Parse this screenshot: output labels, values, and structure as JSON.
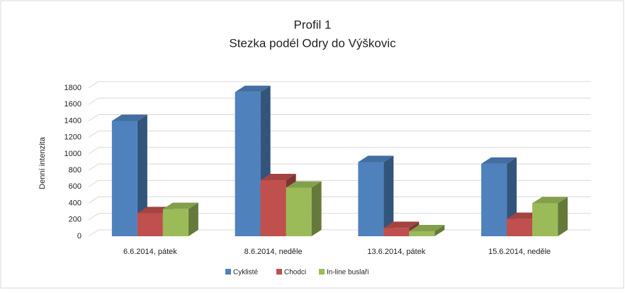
{
  "chart_data": {
    "type": "bar3d",
    "title": "Profil 1",
    "subtitle": "Stezka podél Odry do Výškovic",
    "y_label": "Denní intenzita",
    "categories": [
      "6.6.2014, pátek",
      "8.6.2014, neděle",
      "13.6.2014, pátek",
      "15.6.2014, neděle"
    ],
    "series": [
      {
        "name": "Cyklisté",
        "color": "#4f81bd",
        "values": [
          1400,
          1750,
          900,
          880
        ]
      },
      {
        "name": "Chodci",
        "color": "#c0504d",
        "values": [
          280,
          680,
          100,
          210
        ]
      },
      {
        "name": "In-line buslaři",
        "color": "#9bbb59",
        "values": [
          330,
          590,
          60,
          400
        ]
      }
    ],
    "ylim": [
      0,
      1800
    ],
    "yticks": [
      0,
      200,
      400,
      600,
      800,
      1000,
      1200,
      1400,
      1600,
      1800
    ],
    "grid": true,
    "legend": "bottom"
  }
}
